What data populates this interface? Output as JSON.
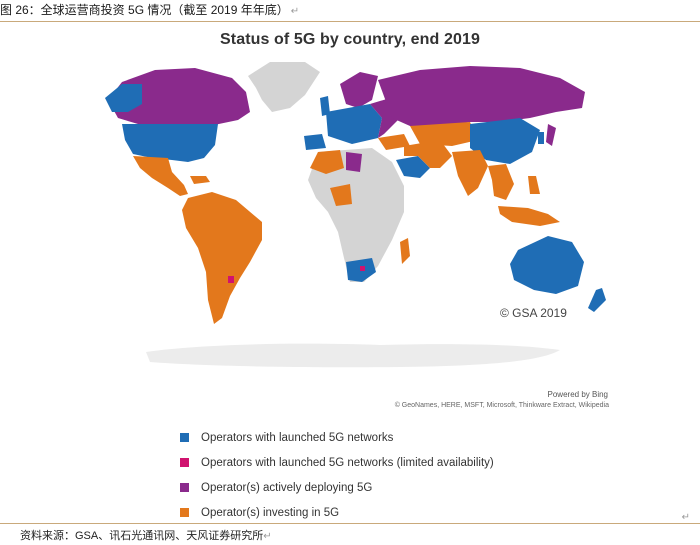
{
  "caption": "图 26：全球运营商投资 5G 情况（截至 2019 年年底）",
  "map": {
    "title": "Status of 5G by country, end 2019",
    "copyright": "© GSA 2019",
    "powered_by": "Powered by Bing",
    "attribution": "© GeoNames, HERE, MSFT, Microsoft, Thinkware Extract, Wikipedia"
  },
  "colors": {
    "launched": "#1f6db5",
    "limited": "#d0136f",
    "deploying": "#8a2a8c",
    "investing": "#e3781c",
    "none": "#d4d4d4",
    "ocean_shadow": "#ececec"
  },
  "legend": [
    {
      "label": "Operators with launched 5G networks",
      "color": "#1f6db5"
    },
    {
      "label": "Operators with launched 5G networks (limited availability)",
      "color": "#d0136f"
    },
    {
      "label": "Operator(s) actively deploying 5G",
      "color": "#8a2a8c"
    },
    {
      "label": "Operator(s) investing in 5G",
      "color": "#e3781c"
    }
  ],
  "source": "资料来源：GSA、讯石光通讯网、天风证券研究所"
}
